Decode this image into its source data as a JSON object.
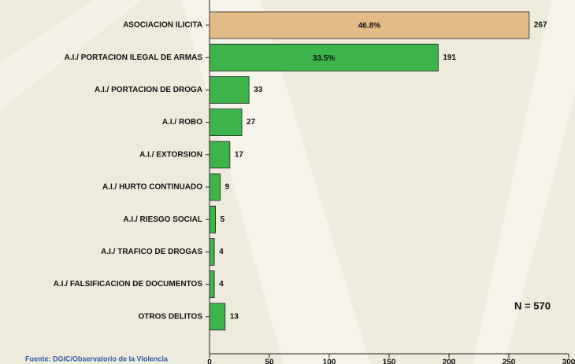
{
  "chart_data": {
    "type": "bar",
    "orientation": "horizontal",
    "categories": [
      "ASOCIACION ILICITA",
      "A.I./ PORTACION ILEGAL DE ARMAS",
      "A.I./ PORTACION DE DROGA",
      "A.I./ ROBO",
      "A.I./ EXTORSION",
      "A.I./ HURTO CONTINUADO",
      "A.I./ RIESGO SOCIAL",
      "A.I./ TRAFICO DE DROGAS",
      "A.I./ FALSIFICACION DE DOCUMENTOS",
      "OTROS DELITOS"
    ],
    "values": [
      267,
      191,
      33,
      27,
      17,
      9,
      5,
      4,
      4,
      13
    ],
    "colors": [
      "#e2bb86",
      "#3db54a",
      "#3db54a",
      "#3db54a",
      "#3db54a",
      "#3db54a",
      "#3db54a",
      "#3db54a",
      "#3db54a",
      "#3db54a"
    ],
    "shares": [
      46.8,
      33.5
    ],
    "share_labels": [
      "46.8%",
      "33.5%"
    ],
    "xlim": [
      0,
      300
    ],
    "xticks": [
      0,
      50,
      100,
      150,
      200,
      250,
      300
    ],
    "annotation": "N = 570",
    "source": "Fuente: DGIC/Observatorio de la Violencia"
  }
}
